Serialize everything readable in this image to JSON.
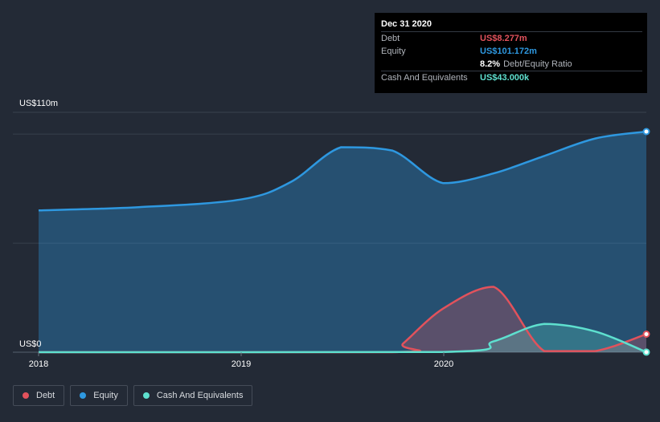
{
  "chart_data": {
    "type": "area",
    "x_ticks": [
      "2018",
      "2019",
      "2020"
    ],
    "x_range": [
      "2018-01-01",
      "2020-12-31"
    ],
    "y_label_top": "US$110m",
    "y_label_bottom": "US$0",
    "ylim": [
      0,
      110
    ],
    "y_unit": "US$m",
    "grid": true,
    "series": [
      {
        "name": "Debt",
        "color": "#e2525c",
        "points": [
          [
            "2018-01-01",
            0
          ],
          [
            "2019-09-30",
            0
          ],
          [
            "2019-10-20",
            4
          ],
          [
            "2019-12-31",
            20
          ],
          [
            "2020-03-31",
            30
          ],
          [
            "2020-06-30",
            0.5
          ],
          [
            "2020-09-30",
            0.5
          ],
          [
            "2020-12-31",
            8.277
          ]
        ]
      },
      {
        "name": "Equity",
        "color": "#2e98e0",
        "points": [
          [
            "2018-01-01",
            65
          ],
          [
            "2018-06-30",
            66.5
          ],
          [
            "2018-12-31",
            70
          ],
          [
            "2019-03-31",
            78
          ],
          [
            "2019-06-30",
            94
          ],
          [
            "2019-09-30",
            92.5
          ],
          [
            "2019-12-31",
            77.5
          ],
          [
            "2020-03-31",
            82
          ],
          [
            "2020-06-30",
            90
          ],
          [
            "2020-09-30",
            98
          ],
          [
            "2020-12-31",
            101.172
          ]
        ]
      },
      {
        "name": "Cash And Equivalents",
        "color": "#5ee0cf",
        "points": [
          [
            "2018-01-01",
            0
          ],
          [
            "2019-12-31",
            0.1
          ],
          [
            "2020-03-31",
            5
          ],
          [
            "2020-06-30",
            13
          ],
          [
            "2020-09-30",
            9.5
          ],
          [
            "2020-12-31",
            0.043
          ]
        ]
      }
    ]
  },
  "tooltip": {
    "date": "Dec 31 2020",
    "rows": [
      {
        "label": "Debt",
        "value": "US$8.277m",
        "color": "#e2525c"
      },
      {
        "label": "Equity",
        "value": "US$101.172m",
        "color": "#2e98e0"
      },
      {
        "label": "",
        "value": "8.2%",
        "suffix": "Debt/Equity Ratio",
        "color": "#ffffff"
      },
      {
        "label": "Cash And Equivalents",
        "value": "US$43.000k",
        "color": "#5ee0cf"
      }
    ]
  },
  "legend": [
    {
      "label": "Debt",
      "color": "#e2525c"
    },
    {
      "label": "Equity",
      "color": "#2e98e0"
    },
    {
      "label": "Cash And Equivalents",
      "color": "#5ee0cf"
    }
  ]
}
